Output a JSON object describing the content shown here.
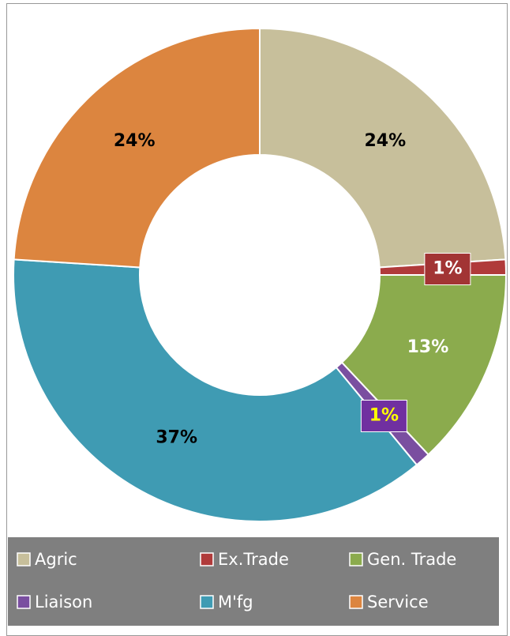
{
  "chart_data": {
    "type": "donut",
    "categories": [
      "Agric",
      "Ex.Trade",
      "Gen. Trade",
      "Liaison",
      "M'fg",
      "Service"
    ],
    "values": [
      24,
      1,
      13,
      1,
      37,
      24
    ],
    "value_labels": [
      "24%",
      "1%",
      "13%",
      "1%",
      "37%",
      "24%"
    ],
    "colors": [
      "#c7bf9b",
      "#b03a3a",
      "#8bab4d",
      "#7a4fa0",
      "#3f9bb3",
      "#dc853f"
    ],
    "legend": "bottom"
  }
}
